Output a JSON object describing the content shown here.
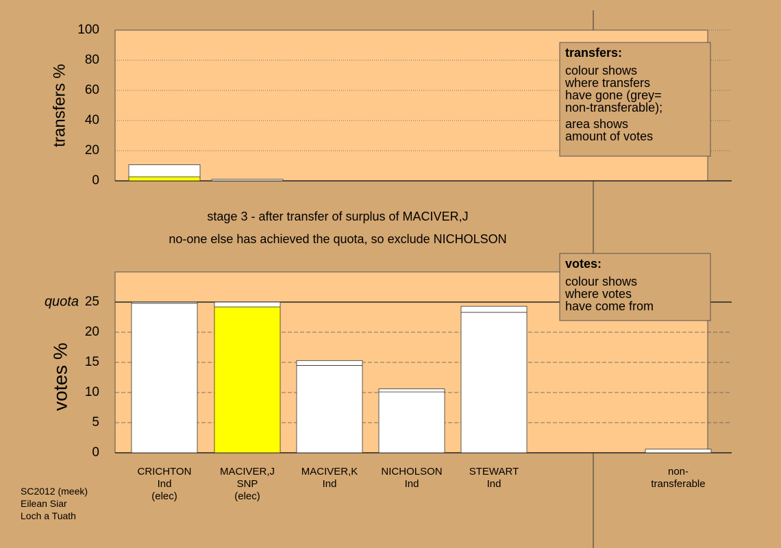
{
  "chart_data": [
    {
      "type": "bar",
      "stacked": true,
      "y_label": "transfers %",
      "categories": [
        null,
        null
      ],
      "series": [
        {
          "color": "#ffff00",
          "values": [
            2.7,
            null
          ]
        },
        {
          "color": "#ffffff",
          "values": [
            8,
            1
          ]
        }
      ],
      "ylim": [
        0,
        100
      ],
      "yticks": [
        0,
        20,
        40,
        60,
        80,
        100
      ],
      "grid": "dotted",
      "annotation": {
        "heading": "transfers:",
        "lines": [
          "colour shows\nwhere transfers\nhave gone (grey=\nnon-transferable);",
          "area shows\namount of votes"
        ]
      }
    },
    {
      "type": "bar",
      "stacked": true,
      "title": "stage 3 - after transfer of surplus of MACIVER,J",
      "subtitle": "no-one else has achieved the quota, so exclude NICHOLSON",
      "y_label": "votes %",
      "categories": [
        "CRICHTON\nInd\n(elec)",
        "MACIVER,J\nSNP\n(elec)",
        "MACIVER,K\nInd",
        "NICHOLSON\nInd",
        "STEWART\nInd",
        null,
        "non-\ntransferable"
      ],
      "series": [
        {
          "colors": [
            "#ffffff",
            "#ffff00",
            "#ffffff",
            "#ffffff",
            "#ffffff",
            null,
            "#ffffff"
          ],
          "values": [
            24.8,
            24.2,
            14.5,
            10.1,
            23.3,
            null,
            0.6
          ]
        },
        {
          "colors": [
            "#ffffff",
            "#ffffff",
            "#ffffff",
            "#ffffff",
            "#ffffff",
            null,
            null
          ],
          "values": [
            0.2,
            0.8,
            0.8,
            0.5,
            1.0,
            null,
            null
          ]
        }
      ],
      "ylim": [
        0,
        30
      ],
      "yticks": [
        0,
        5,
        10,
        15,
        20,
        25
      ],
      "grid": "dashed",
      "quota": 25,
      "quota_label": "quota",
      "annotation": {
        "heading": "votes:",
        "lines": [
          "colour shows\nwhere votes\nhave come from"
        ]
      }
    }
  ],
  "footer": "SC2012 (meek)\nEilean Siar\nLoch a Tuath"
}
